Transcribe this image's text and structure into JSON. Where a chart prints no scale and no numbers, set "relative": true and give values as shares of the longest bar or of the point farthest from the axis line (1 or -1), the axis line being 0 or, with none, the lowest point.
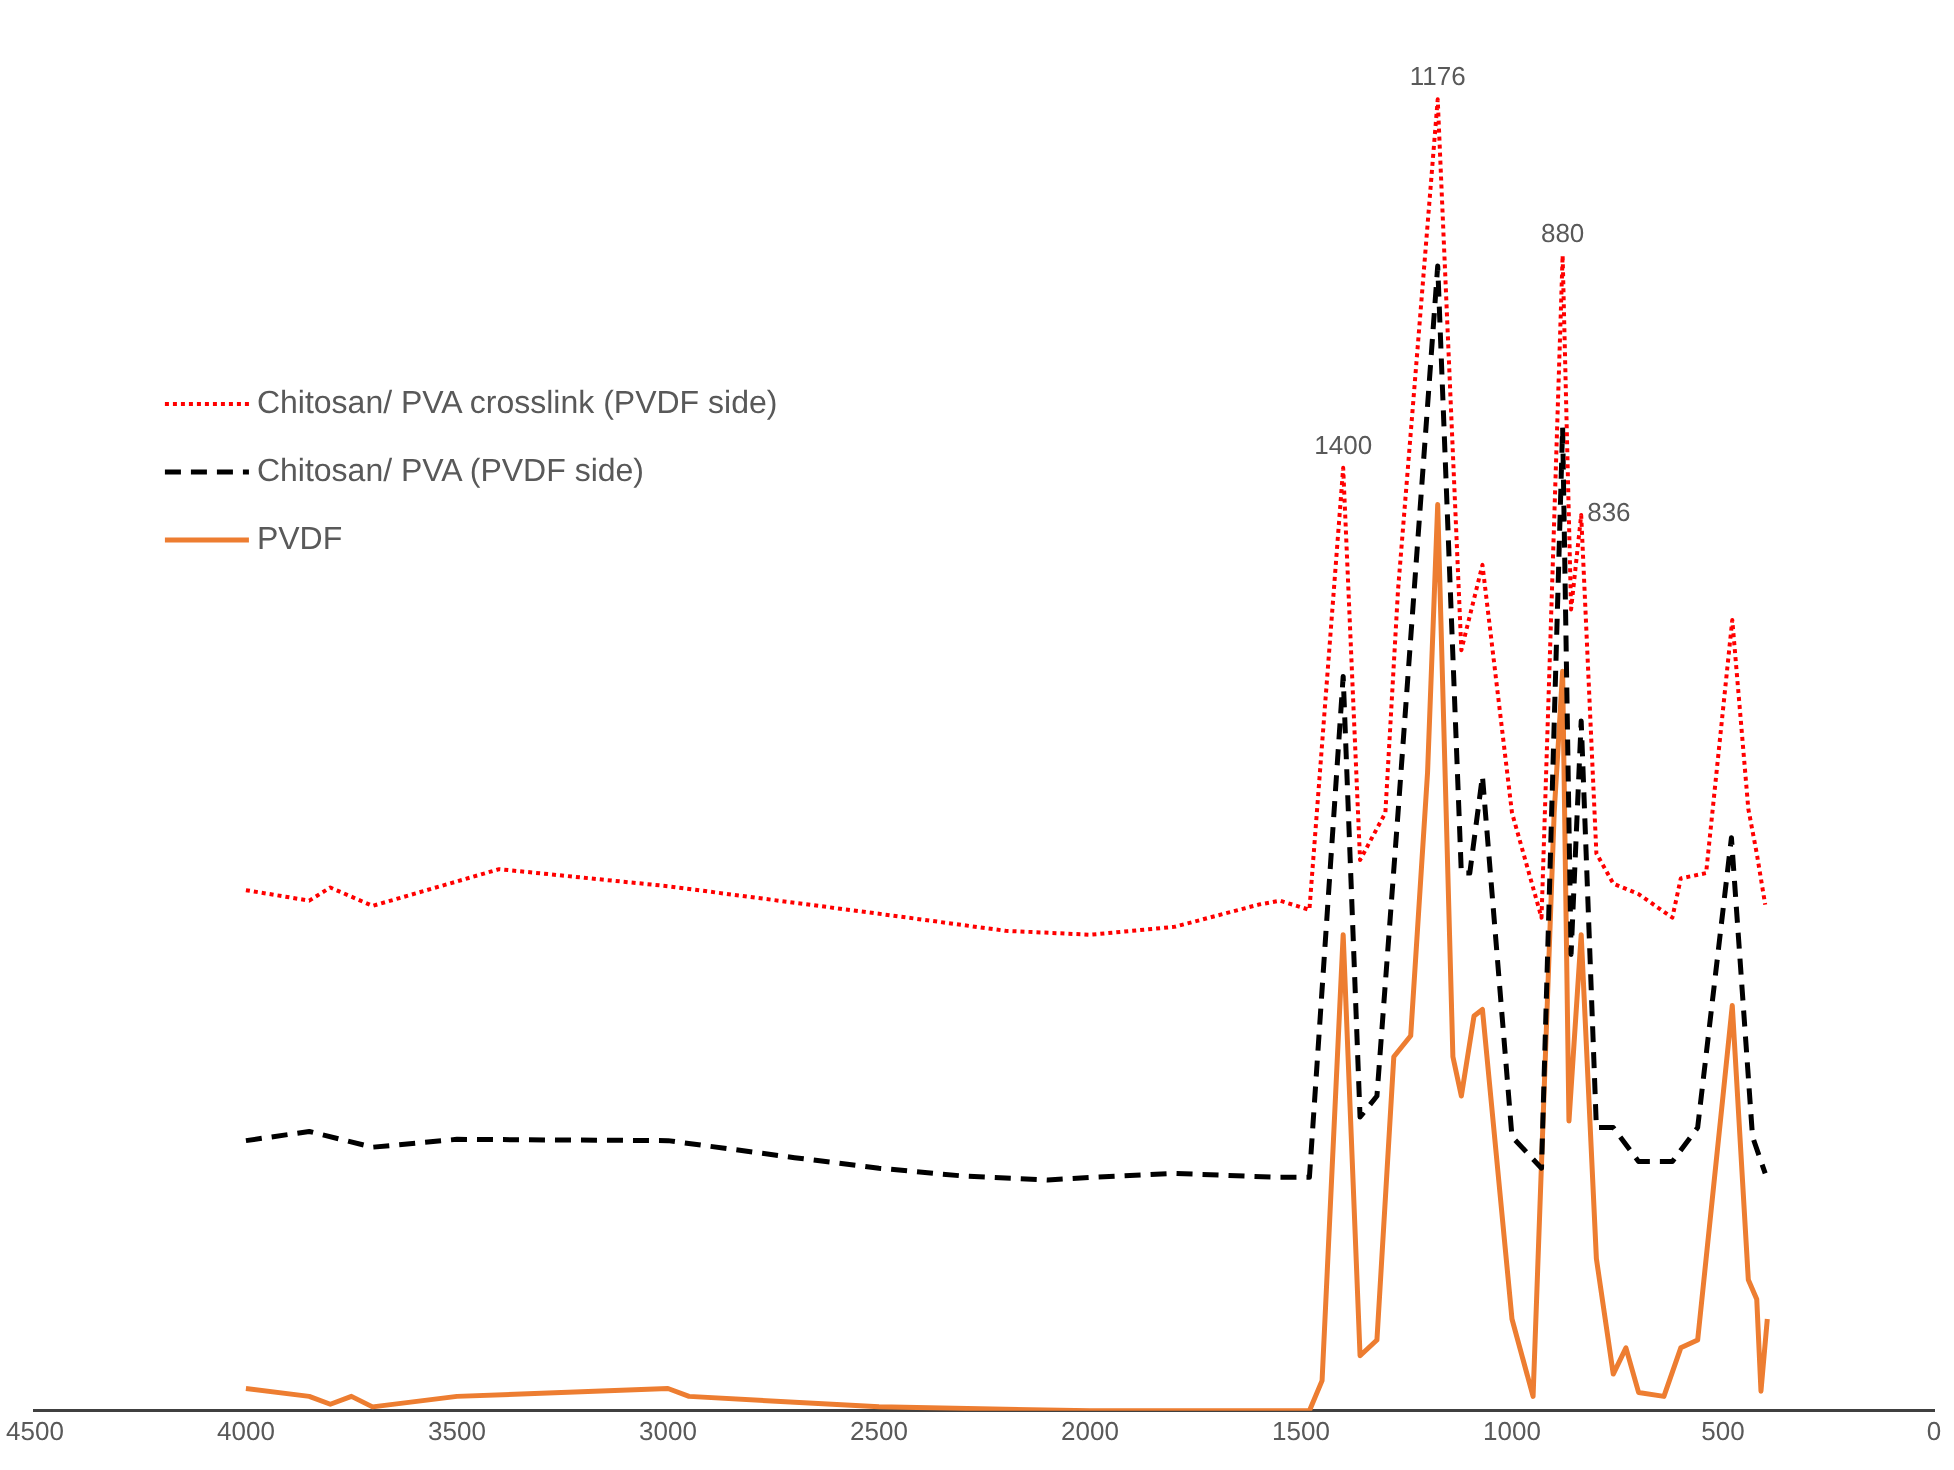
{
  "chart_data": {
    "type": "line",
    "relative": true,
    "legend": "top left",
    "marker": "none",
    "grid": false,
    "xlim": [
      4500,
      0
    ],
    "xticks": [
      4500,
      4000,
      3500,
      3000,
      2500,
      2000,
      1500,
      1000,
      500,
      0
    ],
    "annotations": [
      {
        "text": "1400",
        "x": 1400,
        "y": 0.719
      },
      {
        "text": "1176",
        "x": 1176,
        "y": 1
      },
      {
        "text": "880",
        "x": 880,
        "y": 0.881
      },
      {
        "text": "836",
        "x": 836,
        "y": 0.683
      }
    ],
    "series": [
      {
        "name": "Chitosan/ PVA crosslink (PVDF side)",
        "color": "#ff0000",
        "line_style": "dotted",
        "x": [
          4000,
          3850,
          3800,
          3700,
          3400,
          3000,
          2500,
          2200,
          2000,
          1800,
          1600,
          1550,
          1480,
          1400,
          1360,
          1300,
          1270,
          1176,
          1120,
          1070,
          1000,
          930,
          880,
          860,
          836,
          800,
          760,
          700,
          620,
          600,
          540,
          478,
          440,
          420,
          400
        ],
        "values": [
          0.397,
          0.389,
          0.399,
          0.385,
          0.413,
          0.4,
          0.379,
          0.366,
          0.363,
          0.369,
          0.386,
          0.389,
          0.382,
          0.719,
          0.42,
          0.456,
          0.626,
          1,
          0.58,
          0.645,
          0.456,
          0.376,
          0.881,
          0.611,
          0.683,
          0.425,
          0.402,
          0.394,
          0.376,
          0.406,
          0.41,
          0.603,
          0.459,
          0.425,
          0.386
        ]
      },
      {
        "name": "Chitosan/ PVA (PVDF side)",
        "color": "#000000",
        "line_style": "dashed",
        "x": [
          4000,
          3850,
          3700,
          3500,
          3000,
          2700,
          2500,
          2300,
          2100,
          2000,
          1800,
          1550,
          1480,
          1400,
          1360,
          1320,
          1270,
          1176,
          1120,
          1100,
          1070,
          1000,
          930,
          880,
          860,
          836,
          800,
          760,
          700,
          620,
          560,
          480,
          430,
          400
        ],
        "values": [
          0.206,
          0.213,
          0.201,
          0.207,
          0.206,
          0.193,
          0.185,
          0.179,
          0.176,
          0.178,
          0.181,
          0.178,
          0.178,
          0.56,
          0.224,
          0.24,
          0.456,
          0.873,
          0.41,
          0.41,
          0.484,
          0.209,
          0.185,
          0.75,
          0.348,
          0.526,
          0.216,
          0.216,
          0.19,
          0.19,
          0.216,
          0.437,
          0.209,
          0.181
        ]
      },
      {
        "name": "PVDF",
        "color": "#ed7d31",
        "line_style": "solid",
        "x": [
          4000,
          3850,
          3800,
          3750,
          3700,
          3500,
          3000,
          2950,
          2500,
          2000,
          1600,
          1480,
          1450,
          1400,
          1360,
          1320,
          1280,
          1240,
          1200,
          1176,
          1140,
          1120,
          1090,
          1070,
          1000,
          950,
          900,
          880,
          865,
          836,
          800,
          760,
          730,
          700,
          640,
          600,
          560,
          500,
          478,
          440,
          420,
          410,
          395
        ],
        "values": [
          0.017,
          0.011,
          0.005,
          0.011,
          0.003,
          0.011,
          0.017,
          0.011,
          0.003,
          0,
          0,
          0,
          0.023,
          0.363,
          0.042,
          0.054,
          0.27,
          0.286,
          0.487,
          0.691,
          0.27,
          0.24,
          0.301,
          0.306,
          0.07,
          0.011,
          0.456,
          0.564,
          0.221,
          0.363,
          0.116,
          0.028,
          0.048,
          0.014,
          0.011,
          0.048,
          0.054,
          0.24,
          0.309,
          0.1,
          0.085,
          0.015,
          0.07
        ]
      }
    ]
  }
}
